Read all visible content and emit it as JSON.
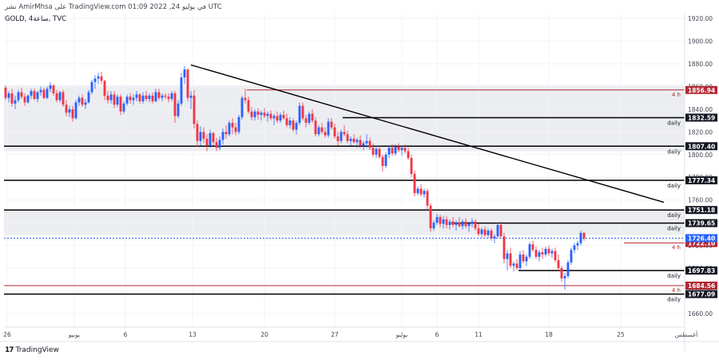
{
  "header": {
    "publish_line": "نشر AmirMhsa على TradingView.com 01:09 2022 ,24 في يوليو UTC",
    "symbol_line": "GOLD, 4ساعة, TVC"
  },
  "branding": {
    "logo_text": "TradingView",
    "logo_icon": "tradingview-logo-icon"
  },
  "colors": {
    "background_band": "#ecedf0",
    "up_candle": "#2962ff",
    "down_candle": "#f23645",
    "black_line": "#000000",
    "red_line": "#b22833",
    "current_price": "#2962ff",
    "axis_text": "#434651"
  },
  "chart_data": {
    "type": "candlestick",
    "title": "",
    "ylim": [
      1648,
      1925
    ],
    "y_ticks": [
      1660.0,
      1680.0,
      1700.0,
      1720.0,
      1740.0,
      1760.0,
      1780.0,
      1800.0,
      1820.0,
      1840.0,
      1860.0,
      1880.0,
      1900.0,
      1920.0
    ],
    "x_labels": [
      {
        "label": "26",
        "bar": 0.5
      },
      {
        "label": "يونيو",
        "bar": 21.5
      },
      {
        "label": "6",
        "bar": 37.5
      },
      {
        "label": "13",
        "bar": 58.5
      },
      {
        "label": "20",
        "bar": 81
      },
      {
        "label": "27",
        "bar": 103
      },
      {
        "label": "يوليو",
        "bar": 124
      },
      {
        "label": "6",
        "bar": 135
      },
      {
        "label": "11",
        "bar": 148
      },
      {
        "label": "18",
        "bar": 170
      },
      {
        "label": "25",
        "bar": 192.5
      },
      {
        "label": "أغسطس",
        "bar": 213
      }
    ],
    "candles": [
      [
        1859,
        1861,
        1848,
        1850
      ],
      [
        1850,
        1856,
        1846,
        1854
      ],
      [
        1854,
        1858,
        1842,
        1845
      ],
      [
        1845,
        1852,
        1840,
        1848
      ],
      [
        1848,
        1857,
        1846,
        1855
      ],
      [
        1855,
        1859,
        1849,
        1851
      ],
      [
        1851,
        1854,
        1843,
        1846
      ],
      [
        1846,
        1853,
        1845,
        1852
      ],
      [
        1852,
        1858,
        1849,
        1856
      ],
      [
        1856,
        1858,
        1848,
        1849
      ],
      [
        1849,
        1856,
        1846,
        1855
      ],
      [
        1855,
        1860,
        1852,
        1857
      ],
      [
        1857,
        1859,
        1849,
        1850
      ],
      [
        1850,
        1860,
        1849,
        1858
      ],
      [
        1858,
        1864,
        1855,
        1861
      ],
      [
        1861,
        1862,
        1852,
        1854
      ],
      [
        1854,
        1857,
        1846,
        1848
      ],
      [
        1848,
        1856,
        1846,
        1855
      ],
      [
        1855,
        1857,
        1842,
        1844
      ],
      [
        1844,
        1848,
        1834,
        1837
      ],
      [
        1837,
        1843,
        1833,
        1840
      ],
      [
        1840,
        1843,
        1829,
        1832
      ],
      [
        1832,
        1848,
        1831,
        1846
      ],
      [
        1846,
        1852,
        1843,
        1850
      ],
      [
        1850,
        1853,
        1842,
        1844
      ],
      [
        1844,
        1849,
        1840,
        1846
      ],
      [
        1846,
        1857,
        1845,
        1855
      ],
      [
        1855,
        1866,
        1853,
        1864
      ],
      [
        1864,
        1870,
        1858,
        1867
      ],
      [
        1867,
        1872,
        1862,
        1869
      ],
      [
        1869,
        1873,
        1862,
        1865
      ],
      [
        1865,
        1866,
        1848,
        1852
      ],
      [
        1852,
        1856,
        1845,
        1848
      ],
      [
        1848,
        1856,
        1845,
        1853
      ],
      [
        1853,
        1856,
        1841,
        1844
      ],
      [
        1844,
        1853,
        1842,
        1851
      ],
      [
        1851,
        1853,
        1835,
        1838
      ],
      [
        1838,
        1847,
        1836,
        1845
      ],
      [
        1845,
        1853,
        1843,
        1851
      ],
      [
        1851,
        1854,
        1845,
        1848
      ],
      [
        1848,
        1853,
        1844,
        1850
      ],
      [
        1850,
        1856,
        1847,
        1853
      ],
      [
        1853,
        1854,
        1845,
        1847
      ],
      [
        1847,
        1855,
        1845,
        1852
      ],
      [
        1852,
        1856,
        1847,
        1849
      ],
      [
        1849,
        1854,
        1846,
        1852
      ],
      [
        1852,
        1855,
        1845,
        1847
      ],
      [
        1847,
        1858,
        1846,
        1855
      ],
      [
        1855,
        1858,
        1848,
        1850
      ],
      [
        1850,
        1854,
        1847,
        1852
      ],
      [
        1852,
        1854,
        1849,
        1851
      ],
      [
        1851,
        1854,
        1846,
        1849
      ],
      [
        1849,
        1856,
        1847,
        1854
      ],
      [
        1854,
        1856,
        1828,
        1834
      ],
      [
        1834,
        1848,
        1832,
        1845
      ],
      [
        1845,
        1872,
        1843,
        1868
      ],
      [
        1868,
        1878,
        1862,
        1875
      ],
      [
        1875,
        1876,
        1847,
        1850
      ],
      [
        1850,
        1856,
        1840,
        1852
      ],
      [
        1852,
        1857,
        1823,
        1827
      ],
      [
        1827,
        1830,
        1807,
        1812
      ],
      [
        1812,
        1825,
        1808,
        1820
      ],
      [
        1820,
        1824,
        1810,
        1814
      ],
      [
        1814,
        1818,
        1803,
        1808
      ],
      [
        1808,
        1822,
        1806,
        1819
      ],
      [
        1819,
        1820,
        1808,
        1811
      ],
      [
        1811,
        1815,
        1803,
        1806
      ],
      [
        1806,
        1816,
        1804,
        1813
      ],
      [
        1813,
        1823,
        1809,
        1820
      ],
      [
        1820,
        1826,
        1814,
        1818
      ],
      [
        1818,
        1830,
        1816,
        1828
      ],
      [
        1828,
        1832,
        1818,
        1824
      ],
      [
        1824,
        1828,
        1817,
        1820
      ],
      [
        1820,
        1835,
        1818,
        1833
      ],
      [
        1833,
        1852,
        1831,
        1850
      ],
      [
        1850,
        1858,
        1845,
        1848
      ],
      [
        1848,
        1851,
        1836,
        1838
      ],
      [
        1838,
        1842,
        1830,
        1833
      ],
      [
        1833,
        1840,
        1830,
        1838
      ],
      [
        1838,
        1841,
        1831,
        1835
      ],
      [
        1835,
        1839,
        1830,
        1837
      ],
      [
        1837,
        1841,
        1832,
        1834
      ],
      [
        1834,
        1838,
        1829,
        1836
      ],
      [
        1836,
        1839,
        1830,
        1832
      ],
      [
        1832,
        1836,
        1826,
        1834
      ],
      [
        1834,
        1838,
        1828,
        1830
      ],
      [
        1830,
        1837,
        1828,
        1835
      ],
      [
        1835,
        1839,
        1831,
        1832
      ],
      [
        1832,
        1836,
        1824,
        1826
      ],
      [
        1826,
        1833,
        1823,
        1830
      ],
      [
        1830,
        1832,
        1820,
        1822
      ],
      [
        1822,
        1830,
        1818,
        1828
      ],
      [
        1828,
        1846,
        1826,
        1843
      ],
      [
        1843,
        1846,
        1830,
        1832
      ],
      [
        1832,
        1835,
        1824,
        1828
      ],
      [
        1828,
        1838,
        1826,
        1836
      ],
      [
        1836,
        1840,
        1828,
        1830
      ],
      [
        1830,
        1833,
        1816,
        1818
      ],
      [
        1818,
        1826,
        1816,
        1824
      ],
      [
        1824,
        1828,
        1818,
        1820
      ],
      [
        1820,
        1824,
        1815,
        1817
      ],
      [
        1817,
        1832,
        1815,
        1829
      ],
      [
        1829,
        1832,
        1822,
        1824
      ],
      [
        1824,
        1827,
        1814,
        1816
      ],
      [
        1816,
        1820,
        1808,
        1812
      ],
      [
        1812,
        1822,
        1810,
        1820
      ],
      [
        1820,
        1826,
        1816,
        1818
      ],
      [
        1818,
        1821,
        1810,
        1812
      ],
      [
        1812,
        1816,
        1808,
        1814
      ],
      [
        1814,
        1818,
        1810,
        1811
      ],
      [
        1811,
        1815,
        1806,
        1813
      ],
      [
        1813,
        1817,
        1806,
        1808
      ],
      [
        1808,
        1812,
        1804,
        1810
      ],
      [
        1810,
        1818,
        1806,
        1812
      ],
      [
        1812,
        1815,
        1804,
        1806
      ],
      [
        1806,
        1810,
        1798,
        1800
      ],
      [
        1800,
        1808,
        1797,
        1805
      ],
      [
        1805,
        1808,
        1796,
        1798
      ],
      [
        1798,
        1800,
        1785,
        1790
      ],
      [
        1790,
        1802,
        1788,
        1800
      ],
      [
        1800,
        1808,
        1797,
        1806
      ],
      [
        1806,
        1809,
        1799,
        1801
      ],
      [
        1801,
        1809,
        1799,
        1807
      ],
      [
        1807,
        1810,
        1802,
        1804
      ],
      [
        1804,
        1808,
        1799,
        1806
      ],
      [
        1806,
        1809,
        1801,
        1803
      ],
      [
        1803,
        1806,
        1795,
        1797
      ],
      [
        1797,
        1800,
        1780,
        1783
      ],
      [
        1783,
        1786,
        1763,
        1766
      ],
      [
        1766,
        1772,
        1764,
        1770
      ],
      [
        1770,
        1774,
        1763,
        1765
      ],
      [
        1765,
        1770,
        1762,
        1768
      ],
      [
        1768,
        1770,
        1752,
        1755
      ],
      [
        1755,
        1757,
        1732,
        1735
      ],
      [
        1735,
        1742,
        1733,
        1740
      ],
      [
        1740,
        1748,
        1738,
        1745
      ],
      [
        1745,
        1747,
        1736,
        1739
      ],
      [
        1739,
        1746,
        1735,
        1743
      ],
      [
        1743,
        1746,
        1735,
        1738
      ],
      [
        1738,
        1743,
        1734,
        1741
      ],
      [
        1741,
        1745,
        1736,
        1738
      ],
      [
        1738,
        1742,
        1733,
        1740
      ],
      [
        1740,
        1745,
        1736,
        1737
      ],
      [
        1737,
        1743,
        1734,
        1741
      ],
      [
        1741,
        1744,
        1735,
        1737
      ],
      [
        1737,
        1741,
        1732,
        1739
      ],
      [
        1739,
        1744,
        1736,
        1741
      ],
      [
        1741,
        1743,
        1733,
        1735
      ],
      [
        1735,
        1739,
        1728,
        1730
      ],
      [
        1730,
        1736,
        1727,
        1734
      ],
      [
        1734,
        1737,
        1727,
        1729
      ],
      [
        1729,
        1735,
        1726,
        1733
      ],
      [
        1733,
        1735,
        1724,
        1726
      ],
      [
        1726,
        1730,
        1722,
        1728
      ],
      [
        1728,
        1740,
        1726,
        1738
      ],
      [
        1738,
        1741,
        1726,
        1728
      ],
      [
        1728,
        1731,
        1704,
        1708
      ],
      [
        1708,
        1716,
        1698,
        1713
      ],
      [
        1713,
        1718,
        1700,
        1702
      ],
      [
        1702,
        1706,
        1697,
        1704
      ],
      [
        1704,
        1708,
        1698,
        1700
      ],
      [
        1700,
        1715,
        1698,
        1712
      ],
      [
        1712,
        1716,
        1704,
        1706
      ],
      [
        1706,
        1712,
        1702,
        1710
      ],
      [
        1710,
        1723,
        1708,
        1721
      ],
      [
        1721,
        1724,
        1714,
        1716
      ],
      [
        1716,
        1719,
        1708,
        1710
      ],
      [
        1710,
        1716,
        1706,
        1714
      ],
      [
        1714,
        1718,
        1708,
        1712
      ],
      [
        1712,
        1719,
        1710,
        1717
      ],
      [
        1717,
        1720,
        1711,
        1713
      ],
      [
        1713,
        1717,
        1709,
        1715
      ],
      [
        1715,
        1718,
        1705,
        1707
      ],
      [
        1707,
        1712,
        1697,
        1700
      ],
      [
        1700,
        1702,
        1688,
        1691
      ],
      [
        1691,
        1696,
        1681,
        1693
      ],
      [
        1693,
        1707,
        1691,
        1705
      ],
      [
        1705,
        1718,
        1703,
        1716
      ],
      [
        1716,
        1722,
        1713,
        1720
      ],
      [
        1720,
        1724,
        1716,
        1722
      ],
      [
        1722,
        1733,
        1720,
        1731
      ],
      [
        1731,
        1732,
        1724,
        1726
      ]
    ],
    "trendlines": [
      {
        "from": {
          "bar": 58,
          "price": 1879
        },
        "to": {
          "bar": 206,
          "price": 1758
        }
      }
    ],
    "levels": [
      {
        "price": 1856.94,
        "label": "1856.94",
        "timeframe": "4 h",
        "kind": "red",
        "line_from_bar": 76
      },
      {
        "price": 1832.59,
        "label": "1832.59",
        "timeframe": "daily",
        "kind": "black",
        "line_from_bar": 106
      },
      {
        "price": 1807.4,
        "label": "1807.40",
        "timeframe": "daily",
        "kind": "black",
        "line_from_bar": 0
      },
      {
        "price": 1777.34,
        "label": "1777.34",
        "timeframe": "daily",
        "kind": "black",
        "line_from_bar": 0
      },
      {
        "price": 1751.18,
        "label": "1751.18",
        "timeframe": "daily",
        "kind": "black",
        "line_from_bar": 0
      },
      {
        "price": 1739.65,
        "label": "1739.65",
        "timeframe": "daily",
        "kind": "black",
        "line_from_bar": 140
      },
      {
        "price": 1722.1,
        "label": "1722.10",
        "timeframe": "4 h",
        "kind": "red",
        "line_from_bar": 194
      },
      {
        "price": 1697.83,
        "label": "1697.83",
        "timeframe": "daily",
        "kind": "black",
        "line_from_bar": 161
      },
      {
        "price": 1684.56,
        "label": "1684.56",
        "timeframe": "4 h",
        "kind": "red",
        "line_from_bar": 0
      },
      {
        "price": 1677.09,
        "label": "1677.09",
        "timeframe": "daily",
        "kind": "black",
        "line_from_bar": 0
      }
    ],
    "current_price": {
      "price": 1726.4,
      "label": "1726.40"
    },
    "shaded_ranges": [
      [
        1803,
        1861
      ],
      [
        1729,
        1751
      ]
    ]
  }
}
